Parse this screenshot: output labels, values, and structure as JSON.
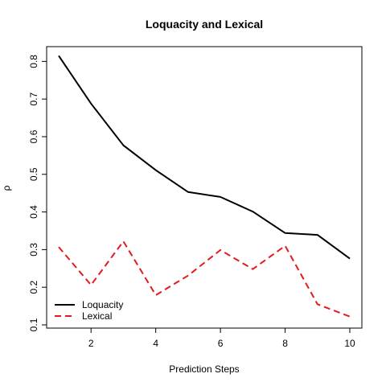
{
  "chart_data": {
    "type": "line",
    "title": "Loquacity and Lexical",
    "xlabel": "Prediction Steps",
    "ylabel": "ρ",
    "xlim": [
      1,
      10
    ],
    "ylim": [
      0.1,
      0.82
    ],
    "xticks": [
      2,
      4,
      6,
      8,
      10
    ],
    "xtick_labels": [
      "2",
      "4",
      "6",
      "8",
      "10"
    ],
    "yticks": [
      0.1,
      0.2,
      0.3,
      0.4,
      0.5,
      0.6,
      0.7,
      0.8
    ],
    "ytick_labels": [
      "0.1",
      "0.2",
      "0.3",
      "0.4",
      "0.5",
      "0.6",
      "0.7",
      "0.8"
    ],
    "x": [
      1,
      2,
      3,
      4,
      5,
      6,
      7,
      8,
      9,
      10
    ],
    "series": [
      {
        "name": "Loquacity",
        "color": "#000000",
        "style": "solid",
        "values": [
          0.815,
          0.688,
          0.577,
          0.511,
          0.453,
          0.44,
          0.401,
          0.344,
          0.339,
          0.276
        ]
      },
      {
        "name": "Lexical",
        "color": "#e41a1c",
        "style": "dashed",
        "values": [
          0.307,
          0.206,
          0.322,
          0.179,
          0.231,
          0.299,
          0.248,
          0.31,
          0.155,
          0.122
        ]
      }
    ],
    "grid": false,
    "legend": {
      "placement": "bottom-left",
      "entries": [
        "Loquacity",
        "Lexical"
      ]
    }
  }
}
